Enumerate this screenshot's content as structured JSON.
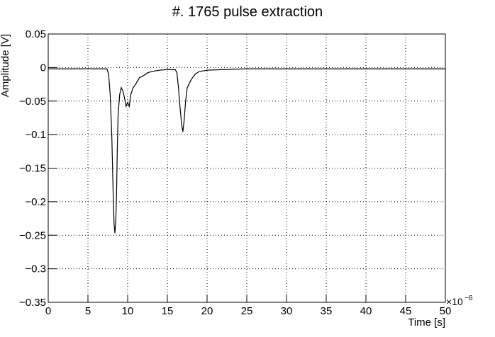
{
  "chart_data": {
    "type": "line",
    "title": "#. 1765 pulse extraction",
    "x_label": "Time [s]",
    "y_label": "Amplitude [V]",
    "x_multiplier": "×10",
    "x_exponent": "−6",
    "color": "#000000",
    "grid": true,
    "xlim": [
      0,
      50
    ],
    "ylim": [
      -0.35,
      0.05
    ],
    "xticks": [
      0,
      5,
      10,
      15,
      20,
      25,
      30,
      35,
      40,
      45,
      50
    ],
    "yticks": [
      {
        "value": 0.05,
        "label": "0.05"
      },
      0,
      {
        "value": -0.05,
        "label": "−0.05"
      },
      {
        "value": -0.1,
        "label": "−0.1"
      },
      {
        "value": -0.15,
        "label": "−0.15"
      },
      {
        "value": -0.2,
        "label": "−0.2"
      },
      {
        "value": -0.25,
        "label": "−0.25"
      },
      {
        "value": -0.3,
        "label": "−0.3"
      },
      {
        "value": -0.35,
        "label": "−0.35"
      }
    ],
    "x": [
      0,
      2,
      4,
      6,
      7.4,
      7.6,
      7.8,
      8.0,
      8.2,
      8.3,
      8.4,
      8.5,
      8.6,
      8.7,
      8.8,
      9.0,
      9.2,
      9.4,
      9.6,
      9.8,
      10.0,
      10.2,
      10.4,
      10.7,
      11.0,
      11.5,
      12,
      12.5,
      13,
      14,
      15,
      16,
      16.2,
      16.4,
      16.6,
      16.8,
      16.95,
      17.1,
      17.3,
      17.5,
      18,
      18.5,
      19,
      20,
      22,
      25,
      30,
      35,
      40,
      45,
      50
    ],
    "values": [
      -0.002,
      -0.002,
      -0.002,
      -0.002,
      -0.002,
      -0.01,
      -0.04,
      -0.1,
      -0.2,
      -0.235,
      -0.247,
      -0.23,
      -0.19,
      -0.12,
      -0.07,
      -0.04,
      -0.03,
      -0.035,
      -0.045,
      -0.058,
      -0.052,
      -0.058,
      -0.04,
      -0.03,
      -0.025,
      -0.015,
      -0.012,
      -0.008,
      -0.006,
      -0.004,
      -0.003,
      -0.003,
      -0.008,
      -0.03,
      -0.06,
      -0.085,
      -0.096,
      -0.08,
      -0.05,
      -0.03,
      -0.018,
      -0.01,
      -0.006,
      -0.004,
      -0.003,
      -0.002,
      -0.002,
      -0.002,
      -0.002,
      -0.002,
      -0.002
    ]
  }
}
